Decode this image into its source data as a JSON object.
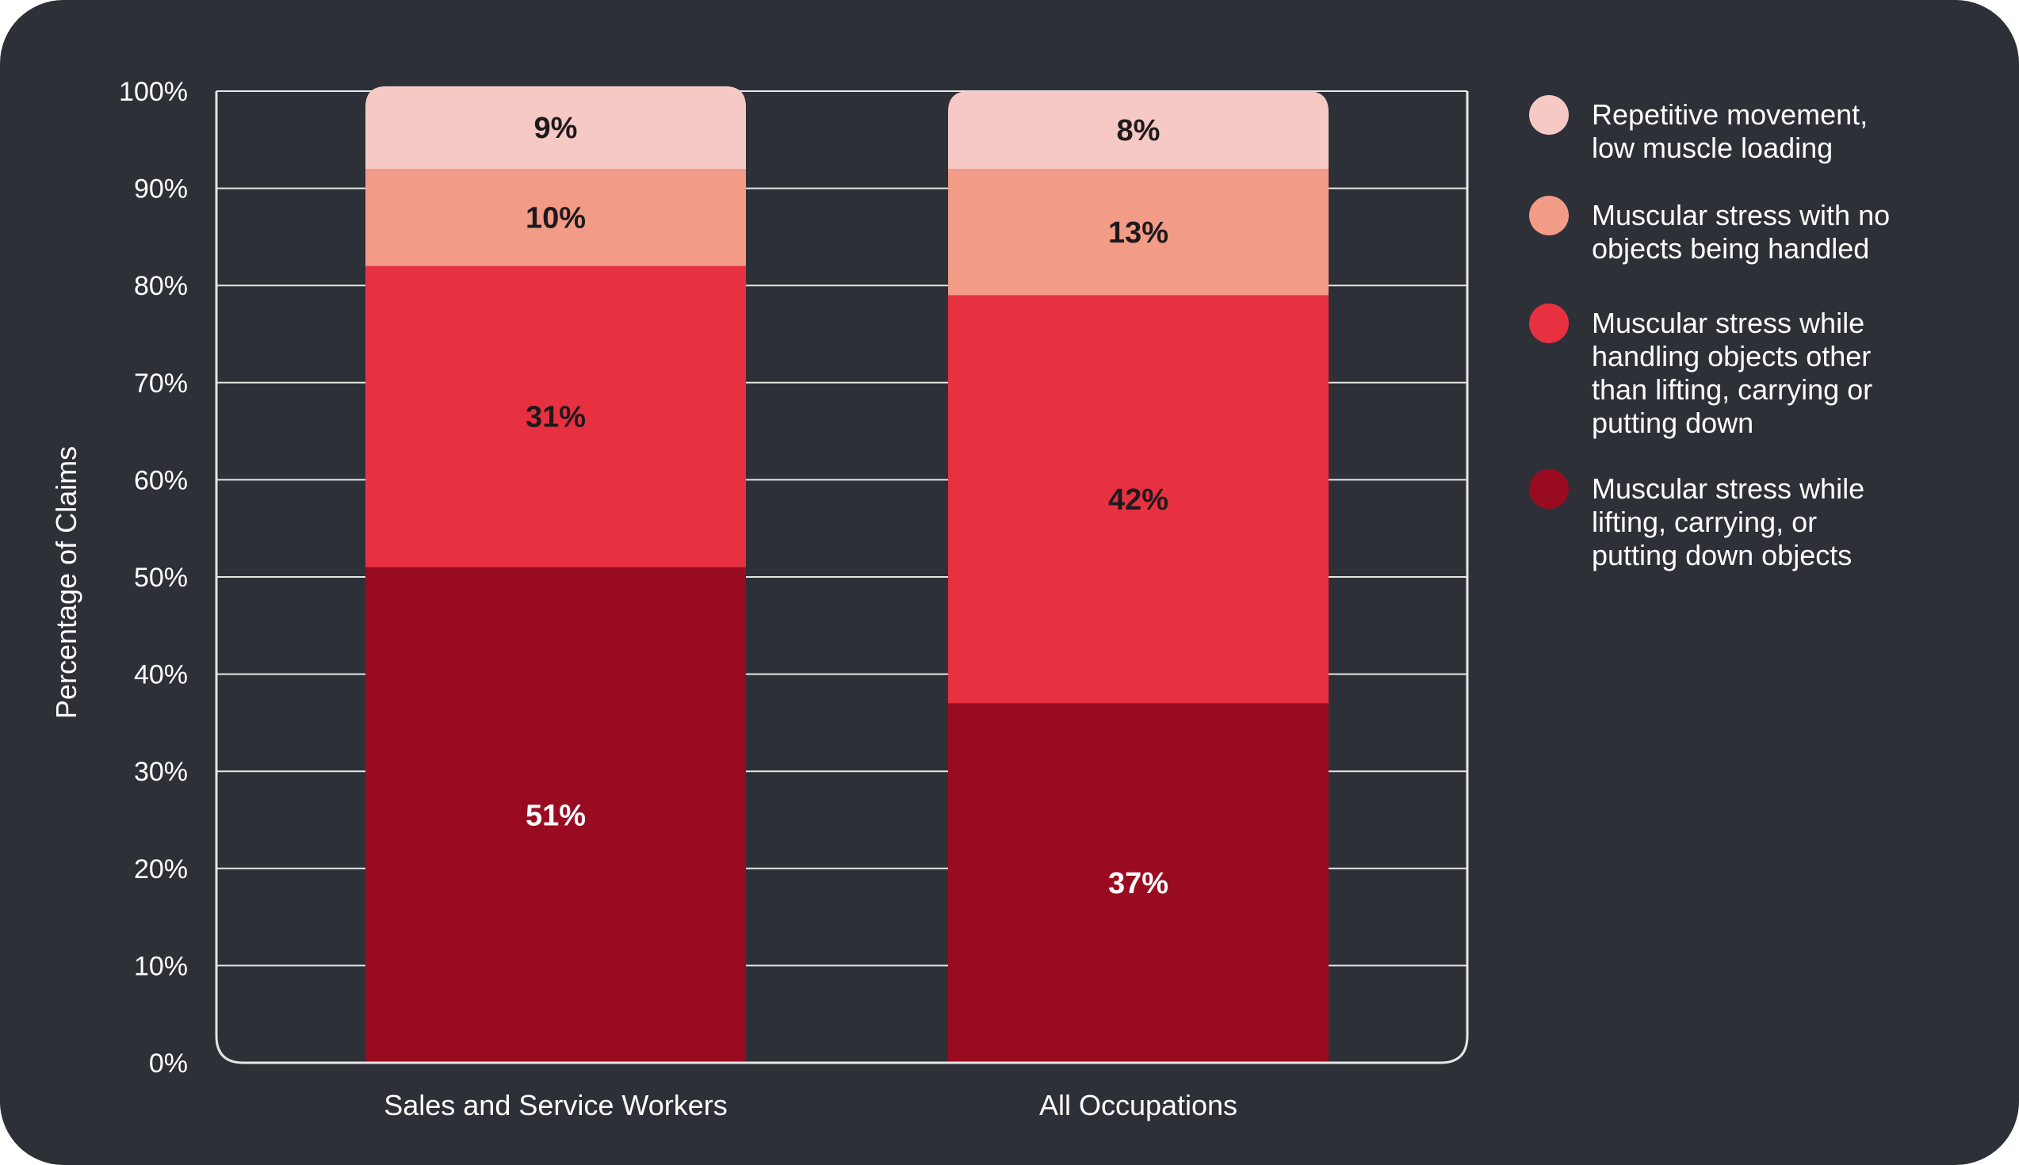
{
  "chart_data": {
    "type": "bar",
    "stacked": true,
    "ylabel": "Percentage of Claims",
    "xlabel": "",
    "ylim": [
      0,
      100
    ],
    "y_ticks": [
      "0%",
      "10%",
      "20%",
      "30%",
      "40%",
      "50%",
      "60%",
      "70%",
      "80%",
      "90%",
      "100%"
    ],
    "grid": true,
    "legend_position": "right",
    "categories": [
      "Sales and Service Workers",
      "All Occupations"
    ],
    "series": [
      {
        "name": "Muscular stress while lifting, carrying, or putting down objects",
        "legend_lines": [
          "Muscular stress while",
          "lifting, carrying, or",
          "putting down objects"
        ],
        "color": "#990b20",
        "label_color": "#ffffff",
        "values": [
          51,
          37
        ],
        "labels": [
          "51%",
          "37%"
        ]
      },
      {
        "name": "Muscular stress while handling objects other than lifting, carrying or putting down",
        "legend_lines": [
          "Muscular stress while",
          "handling objects other",
          "than lifting, carrying or",
          "putting down"
        ],
        "color": "#e83140",
        "label_color": "#1e1a1c",
        "values": [
          31,
          42
        ],
        "labels": [
          "31%",
          "42%"
        ]
      },
      {
        "name": "Muscular stress with no objects being handled",
        "legend_lines": [
          "Muscular stress with no",
          "objects being handled"
        ],
        "color": "#f29b87",
        "label_color": "#1e1a1c",
        "values": [
          10,
          13
        ],
        "labels": [
          "10%",
          "13%"
        ]
      },
      {
        "name": "Repetitive movement, low muscle loading",
        "legend_lines": [
          "Repetitive movement,",
          "low muscle loading"
        ],
        "color": "#f6c9c4",
        "label_color": "#1e1a1c",
        "values": [
          8.5,
          8
        ],
        "labels": [
          "9%",
          "8%"
        ]
      }
    ],
    "legend_order": [
      3,
      2,
      1,
      0
    ]
  }
}
